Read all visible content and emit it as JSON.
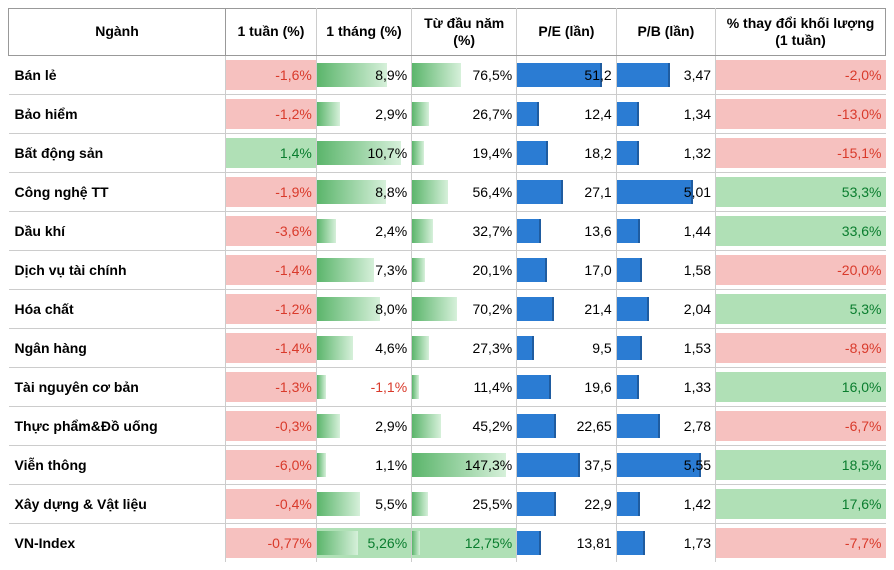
{
  "colors": {
    "red_bg": "#f6c1bf",
    "red_text": "#d93a2b",
    "green_bg": "#b0e0b6",
    "green_text": "#0a7d2e",
    "green_grad_dark": "#5bb56b",
    "green_grad_light": "#d6f0da",
    "blue": "#2b7cd3",
    "blue_tick": "#1f5ca0",
    "black": "#000000"
  },
  "widths": {
    "col1": 85,
    "col2": 90,
    "col3": 100,
    "col4": 95,
    "col5": 95,
    "col6": 170
  },
  "max": {
    "col2": 11,
    "col3": 150,
    "col4": 55,
    "col5": 6
  },
  "headers": [
    "Ngành",
    "1 tuần (%)",
    "1 tháng (%)",
    "Từ đầu năm (%)",
    "P/E (lần)",
    "P/B (lần)",
    "% thay đổi khối lượng (1 tuần)"
  ],
  "rows": [
    {
      "name": "Bán lẻ",
      "w": {
        "v": -1.6,
        "d": "-1,6%"
      },
      "m": {
        "v": 8.9,
        "d": "8,9%"
      },
      "y": {
        "v": 76.5,
        "d": "76,5%"
      },
      "pe": {
        "v": 51.2,
        "d": "51,2"
      },
      "pb": {
        "v": 3.47,
        "d": "3,47"
      },
      "vol": {
        "v": -2.0,
        "d": "-2,0%"
      }
    },
    {
      "name": "Bảo hiểm",
      "w": {
        "v": -1.2,
        "d": "-1,2%"
      },
      "m": {
        "v": 2.9,
        "d": "2,9%"
      },
      "y": {
        "v": 26.7,
        "d": "26,7%"
      },
      "pe": {
        "v": 12.4,
        "d": "12,4"
      },
      "pb": {
        "v": 1.34,
        "d": "1,34"
      },
      "vol": {
        "v": -13.0,
        "d": "-13,0%"
      }
    },
    {
      "name": "Bất động sản",
      "w": {
        "v": 1.4,
        "d": "1,4%"
      },
      "m": {
        "v": 10.7,
        "d": "10,7%"
      },
      "y": {
        "v": 19.4,
        "d": "19,4%"
      },
      "pe": {
        "v": 18.2,
        "d": "18,2"
      },
      "pb": {
        "v": 1.32,
        "d": "1,32"
      },
      "vol": {
        "v": -15.1,
        "d": "-15,1%"
      }
    },
    {
      "name": "Công nghệ TT",
      "w": {
        "v": -1.9,
        "d": "-1,9%"
      },
      "m": {
        "v": 8.8,
        "d": "8,8%"
      },
      "y": {
        "v": 56.4,
        "d": "56,4%"
      },
      "pe": {
        "v": 27.1,
        "d": "27,1"
      },
      "pb": {
        "v": 5.01,
        "d": "5,01"
      },
      "vol": {
        "v": 53.3,
        "d": "53,3%"
      }
    },
    {
      "name": "Dầu khí",
      "w": {
        "v": -3.6,
        "d": "-3,6%"
      },
      "m": {
        "v": 2.4,
        "d": "2,4%"
      },
      "y": {
        "v": 32.7,
        "d": "32,7%"
      },
      "pe": {
        "v": 13.6,
        "d": "13,6"
      },
      "pb": {
        "v": 1.44,
        "d": "1,44"
      },
      "vol": {
        "v": 33.6,
        "d": "33,6%"
      }
    },
    {
      "name": "Dịch vụ tài chính",
      "w": {
        "v": -1.4,
        "d": "-1,4%"
      },
      "m": {
        "v": 7.3,
        "d": "7,3%"
      },
      "y": {
        "v": 20.1,
        "d": "20,1%"
      },
      "pe": {
        "v": 17.0,
        "d": "17,0"
      },
      "pb": {
        "v": 1.58,
        "d": "1,58"
      },
      "vol": {
        "v": -20.0,
        "d": "-20,0%"
      }
    },
    {
      "name": "Hóa chất",
      "w": {
        "v": -1.2,
        "d": "-1,2%"
      },
      "m": {
        "v": 8.0,
        "d": "8,0%"
      },
      "y": {
        "v": 70.2,
        "d": "70,2%"
      },
      "pe": {
        "v": 21.4,
        "d": "21,4"
      },
      "pb": {
        "v": 2.04,
        "d": "2,04"
      },
      "vol": {
        "v": 5.3,
        "d": "5,3%"
      }
    },
    {
      "name": "Ngân hàng",
      "w": {
        "v": -1.4,
        "d": "-1,4%"
      },
      "m": {
        "v": 4.6,
        "d": "4,6%"
      },
      "y": {
        "v": 27.3,
        "d": "27,3%"
      },
      "pe": {
        "v": 9.5,
        "d": "9,5"
      },
      "pb": {
        "v": 1.53,
        "d": "1,53"
      },
      "vol": {
        "v": -8.9,
        "d": "-8,9%"
      }
    },
    {
      "name": "Tài nguyên cơ bản",
      "w": {
        "v": -1.3,
        "d": "-1,3%"
      },
      "m": {
        "v": -1.1,
        "d": "-1,1%"
      },
      "y": {
        "v": 11.4,
        "d": "11,4%"
      },
      "pe": {
        "v": 19.6,
        "d": "19,6"
      },
      "pb": {
        "v": 1.33,
        "d": "1,33"
      },
      "vol": {
        "v": 16.0,
        "d": "16,0%"
      }
    },
    {
      "name": "Thực phẩm&Đồ uống",
      "w": {
        "v": -0.3,
        "d": "-0,3%"
      },
      "m": {
        "v": 2.9,
        "d": "2,9%"
      },
      "y": {
        "v": 45.2,
        "d": "45,2%"
      },
      "pe": {
        "v": 22.65,
        "d": "22,65"
      },
      "pb": {
        "v": 2.78,
        "d": "2,78"
      },
      "vol": {
        "v": -6.7,
        "d": "-6,7%"
      }
    },
    {
      "name": "Viễn thông",
      "w": {
        "v": -6.0,
        "d": "-6,0%"
      },
      "m": {
        "v": 1.1,
        "d": "1,1%"
      },
      "y": {
        "v": 147.3,
        "d": "147,3%"
      },
      "pe": {
        "v": 37.5,
        "d": "37,5"
      },
      "pb": {
        "v": 5.55,
        "d": "5,55"
      },
      "vol": {
        "v": 18.5,
        "d": "18,5%"
      }
    },
    {
      "name": "Xây dựng & Vật liệu",
      "w": {
        "v": -0.4,
        "d": "-0,4%"
      },
      "m": {
        "v": 5.5,
        "d": "5,5%"
      },
      "y": {
        "v": 25.5,
        "d": "25,5%"
      },
      "pe": {
        "v": 22.9,
        "d": "22,9"
      },
      "pb": {
        "v": 1.42,
        "d": "1,42"
      },
      "vol": {
        "v": 17.6,
        "d": "17,6%"
      }
    },
    {
      "name": "VN-Index",
      "w": {
        "v": -0.77,
        "d": "-0,77%"
      },
      "m": {
        "v": 5.26,
        "d": "5,26%",
        "hl": true
      },
      "y": {
        "v": 12.75,
        "d": "12,75%",
        "hl": true
      },
      "pe": {
        "v": 13.81,
        "d": "13,81"
      },
      "pb": {
        "v": 1.73,
        "d": "1,73"
      },
      "vol": {
        "v": -7.7,
        "d": "-7,7%"
      }
    }
  ]
}
